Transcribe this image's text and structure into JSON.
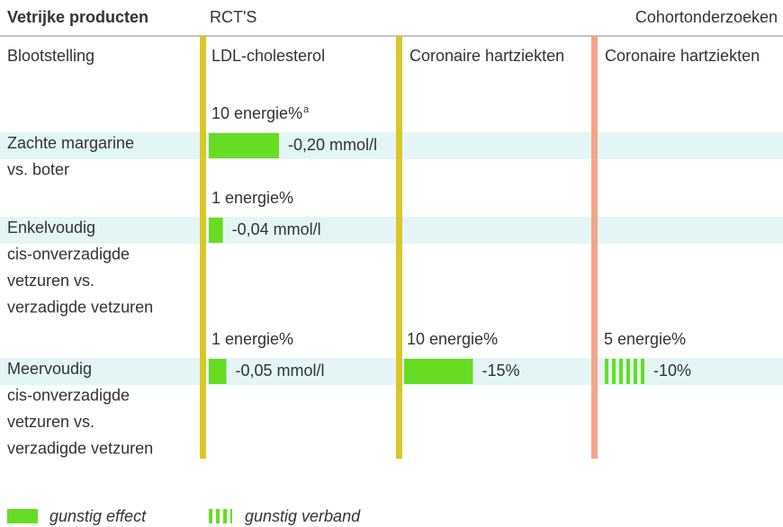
{
  "header": {
    "title": "Vetrijke producten",
    "group_rct": "RCT'S",
    "group_cohort": "Cohortonderzoeken"
  },
  "columns": {
    "exposure": "Blootstelling",
    "ldl": "LDL-cholesterol",
    "chd_rct": "Coronaire hartziekten",
    "chd_cohort": "Coronaire hartziekten"
  },
  "rows": [
    {
      "label_lines": [
        "Zachte margarine",
        "vs. boter"
      ],
      "cells": {
        "ldl": {
          "dose": "10 energie%",
          "dose_note": "a",
          "value": -0.2,
          "label": "-0,20 mmol/l",
          "style": "solid"
        }
      }
    },
    {
      "label_lines": [
        "Enkelvoudig",
        "cis-onverzadigde",
        "vetzuren vs.",
        "verzadigde vetzuren"
      ],
      "cells": {
        "ldl": {
          "dose": "1 energie%",
          "value": -0.04,
          "label": "-0,04 mmol/l",
          "style": "solid"
        }
      }
    },
    {
      "label_lines": [
        "Meervoudig",
        "cis-onverzadigde",
        "vetzuren vs.",
        "verzadigde vetzuren"
      ],
      "cells": {
        "ldl": {
          "dose": "1 energie%",
          "value": -0.05,
          "label": "-0,05 mmol/l",
          "style": "solid"
        },
        "chd_rct": {
          "dose": "10 energie%",
          "value": -15,
          "label": "-15%",
          "style": "solid"
        },
        "chd_cohort": {
          "dose": "5 energie%",
          "value": -10,
          "label": "-10%",
          "style": "striped"
        }
      }
    }
  ],
  "legend": [
    {
      "name": "gunstig effect",
      "style": "solid"
    },
    {
      "name": "gunstig verband",
      "style": "striped"
    }
  ]
}
